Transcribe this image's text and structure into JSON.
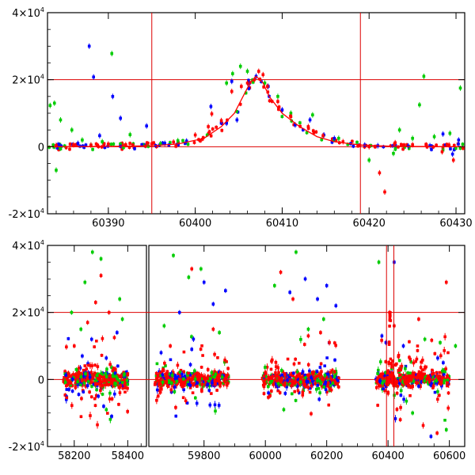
{
  "chart_data": [
    {
      "type": "scatter",
      "title": "",
      "xlabel": "",
      "ylabel": "",
      "xlim": [
        60383,
        60431
      ],
      "ylim": [
        -20000,
        40000
      ],
      "x_ticks": [
        {
          "value": 60390,
          "label": "60390"
        },
        {
          "value": 60400,
          "label": "60400"
        },
        {
          "value": 60410,
          "label": "60410"
        },
        {
          "value": 60420,
          "label": "60420"
        },
        {
          "value": 60430,
          "label": "60430"
        }
      ],
      "y_ticks": [
        {
          "value": -20000,
          "mant": "-2×10",
          "exp": "4"
        },
        {
          "value": 0,
          "mant": "0",
          "exp": ""
        },
        {
          "value": 20000,
          "mant": "2×10",
          "exp": "4"
        },
        {
          "value": 40000,
          "mant": "4×10",
          "exp": "4"
        }
      ],
      "reference_lines": {
        "horizontal": [
          0,
          20000
        ],
        "vertical": [
          60395,
          60419
        ]
      },
      "model_curve": {
        "color": "#ff0000",
        "x": [
          60383,
          60390,
          60395,
          60398,
          60401,
          60403,
          60404.5,
          60405.5,
          60406.3,
          60407,
          60407.8,
          60408.5,
          60410,
          60412,
          60414,
          60416,
          60419,
          60423,
          60431
        ],
        "y": [
          0,
          100,
          300,
          800,
          2500,
          6000,
          10000,
          15000,
          19000,
          21000,
          19000,
          15000,
          10000,
          6000,
          3000,
          1500,
          500,
          100,
          0
        ]
      },
      "series": [
        {
          "name": "",
          "color": "#0000ff",
          "points": [
            [
              60384.2,
              600
            ],
            [
              60386.5,
              1000
            ],
            [
              60387.8,
              30000
            ],
            [
              60388.3,
              20800
            ],
            [
              60389,
              3300
            ],
            [
              60390.5,
              15000
            ],
            [
              60391.4,
              8500
            ],
            [
              60394.4,
              6200
            ],
            [
              60396.5,
              1000
            ],
            [
              60399,
              1700
            ],
            [
              60401.8,
              12000
            ],
            [
              60403.6,
              7000
            ],
            [
              60404.2,
              19500
            ],
            [
              60404.8,
              8000
            ],
            [
              60406.2,
              18800
            ],
            [
              60407,
              21000
            ],
            [
              60408.4,
              18000
            ],
            [
              60410,
              11000
            ],
            [
              60411.5,
              6500
            ],
            [
              60413.2,
              8000
            ],
            [
              60414.8,
              3500
            ],
            [
              60416,
              2500
            ],
            [
              60419.5,
              500
            ],
            [
              60421,
              300
            ],
            [
              60424.5,
              200
            ],
            [
              60427,
              300
            ],
            [
              60428.5,
              3800
            ],
            [
              60429.6,
              -2200
            ],
            [
              60430.3,
              2000
            ]
          ]
        },
        {
          "name": "",
          "color": "#00cc00",
          "points": [
            [
              60383.3,
              12300
            ],
            [
              60383.8,
              13000
            ],
            [
              60384,
              -7000
            ],
            [
              60384.5,
              8000
            ],
            [
              60385.8,
              5000
            ],
            [
              60387,
              2000
            ],
            [
              60388,
              500
            ],
            [
              60389.3,
              1500
            ],
            [
              60390.4,
              27800
            ],
            [
              60392.5,
              3600
            ],
            [
              60396,
              900
            ],
            [
              60398,
              1800
            ],
            [
              60403.6,
              19000
            ],
            [
              60404.3,
              21800
            ],
            [
              60405.2,
              24000
            ],
            [
              60406,
              22500
            ],
            [
              60408,
              19000
            ],
            [
              60409.5,
              15000
            ],
            [
              60411,
              10000
            ],
            [
              60413.5,
              9500
            ],
            [
              60416.5,
              2500
            ],
            [
              60420,
              -4000
            ],
            [
              60422.8,
              -2000
            ],
            [
              60423.5,
              5000
            ],
            [
              60425,
              2500
            ],
            [
              60425.8,
              12500
            ],
            [
              60426.3,
              21000
            ],
            [
              60427.5,
              3000
            ],
            [
              60428.5,
              -1000
            ],
            [
              60429.3,
              4000
            ],
            [
              60430.5,
              17500
            ]
          ]
        },
        {
          "name": "",
          "color": "#ff0000",
          "points": [
            [
              60384,
              400
            ],
            [
              60386,
              600
            ],
            [
              60388,
              500
            ],
            [
              60390,
              800
            ],
            [
              60392,
              600
            ],
            [
              60395,
              900
            ],
            [
              60397.5,
              1400
            ],
            [
              60400,
              3500
            ],
            [
              60401.5,
              6000
            ],
            [
              60401.9,
              9800
            ],
            [
              60403,
              7800
            ],
            [
              60404.2,
              16500
            ],
            [
              60405.3,
              18000
            ],
            [
              60406,
              19000
            ],
            [
              60406.8,
              20000
            ],
            [
              60407.3,
              22500
            ],
            [
              60407.8,
              21500
            ],
            [
              60408.3,
              18000
            ],
            [
              60409.5,
              13500
            ],
            [
              60411,
              9000
            ],
            [
              60413,
              6000
            ],
            [
              60414.7,
              3300
            ],
            [
              60417,
              1500
            ],
            [
              60420,
              0
            ],
            [
              60421.2,
              -7800
            ],
            [
              60421.8,
              -13500
            ],
            [
              60423,
              1200
            ],
            [
              60425,
              600
            ],
            [
              60426.6,
              500
            ],
            [
              60428.4,
              -1500
            ],
            [
              60429.2,
              500
            ],
            [
              60429.7,
              -4000
            ]
          ]
        }
      ]
    },
    {
      "type": "scatter",
      "title": "",
      "xlabel": "",
      "ylabel": "",
      "xlim": [
        58100,
        60650
      ],
      "ylim": [
        -20000,
        40000
      ],
      "x_segments": [
        [
          58100,
          58470
        ],
        [
          59620,
          60650
        ]
      ],
      "x_ticks": [
        {
          "value": 58200,
          "label": "58200"
        },
        {
          "value": 58400,
          "label": "58400"
        },
        {
          "value": 59800,
          "label": "59800"
        },
        {
          "value": 60000,
          "label": "60000"
        },
        {
          "value": 60200,
          "label": "60200"
        },
        {
          "value": 60400,
          "label": "60400"
        },
        {
          "value": 60600,
          "label": "60600"
        }
      ],
      "y_ticks": [
        {
          "value": -20000,
          "mant": "-2×10",
          "exp": "4"
        },
        {
          "value": 0,
          "mant": "0",
          "exp": ""
        },
        {
          "value": 20000,
          "mant": "2×10",
          "exp": "4"
        },
        {
          "value": 40000,
          "mant": "4×10",
          "exp": "4"
        }
      ],
      "reference_lines": {
        "horizontal": [
          0,
          20000
        ],
        "vertical": [
          60395,
          60419
        ]
      },
      "observing_seasons": [
        {
          "x_range": [
            58160,
            58400
          ]
        },
        {
          "x_range": [
            59640,
            59880
          ]
        },
        {
          "x_range": [
            59990,
            60240
          ]
        },
        {
          "x_range": [
            60360,
            60600
          ]
        }
      ],
      "series": [
        {
          "name": "",
          "color": "#0000ff",
          "points": [
            [
              58180,
              -3000
            ],
            [
              58230,
              7000
            ],
            [
              58265,
              12000
            ],
            [
              58290,
              -5000
            ],
            [
              58310,
              -8000
            ],
            [
              58340,
              -11000
            ],
            [
              58360,
              14000
            ],
            [
              59660,
              8000
            ],
            [
              59720,
              20000
            ],
            [
              59760,
              9000
            ],
            [
              59800,
              29000
            ],
            [
              59830,
              22500
            ],
            [
              59870,
              26500
            ],
            [
              60010,
              -4000
            ],
            [
              60080,
              26000
            ],
            [
              60130,
              30000
            ],
            [
              60170,
              24000
            ],
            [
              60200,
              28000
            ],
            [
              60230,
              22000
            ],
            [
              60380,
              13000
            ],
            [
              60420,
              35000
            ],
            [
              60450,
              10000
            ],
            [
              60500,
              -2000
            ],
            [
              60540,
              -17000
            ],
            [
              60580,
              5000
            ]
          ]
        },
        {
          "name": "",
          "color": "#00cc00",
          "points": [
            [
              58190,
              20000
            ],
            [
              58225,
              15000
            ],
            [
              58240,
              29000
            ],
            [
              58268,
              38000
            ],
            [
              58300,
              36000
            ],
            [
              58320,
              -9000
            ],
            [
              58370,
              24000
            ],
            [
              58380,
              18000
            ],
            [
              59670,
              16000
            ],
            [
              59700,
              37000
            ],
            [
              59750,
              30500
            ],
            [
              59790,
              33000
            ],
            [
              59850,
              14000
            ],
            [
              60030,
              28000
            ],
            [
              60060,
              -9000
            ],
            [
              60100,
              38000
            ],
            [
              60140,
              15000
            ],
            [
              60190,
              18000
            ],
            [
              60370,
              35000
            ],
            [
              60480,
              -10000
            ],
            [
              60520,
              12000
            ],
            [
              60570,
              11000
            ],
            [
              60590,
              -15000
            ],
            [
              60620,
              10000
            ]
          ]
        },
        {
          "name": "",
          "color": "#ff0000",
          "points": [
            [
              58200,
              10000
            ],
            [
              58250,
              17000
            ],
            [
              58280,
              23000
            ],
            [
              58300,
              31000
            ],
            [
              58330,
              20000
            ],
            [
              58350,
              12500
            ],
            [
              59690,
              10000
            ],
            [
              59760,
              33000
            ],
            [
              59830,
              15000
            ],
            [
              60050,
              32000
            ],
            [
              60090,
              24000
            ],
            [
              60140,
              13000
            ],
            [
              60180,
              14000
            ],
            [
              60405,
              20000
            ],
            [
              60420,
              16000
            ],
            [
              60440,
              -12000
            ],
            [
              60500,
              18000
            ],
            [
              60560,
              -16000
            ],
            [
              60590,
              29000
            ]
          ]
        }
      ]
    }
  ]
}
